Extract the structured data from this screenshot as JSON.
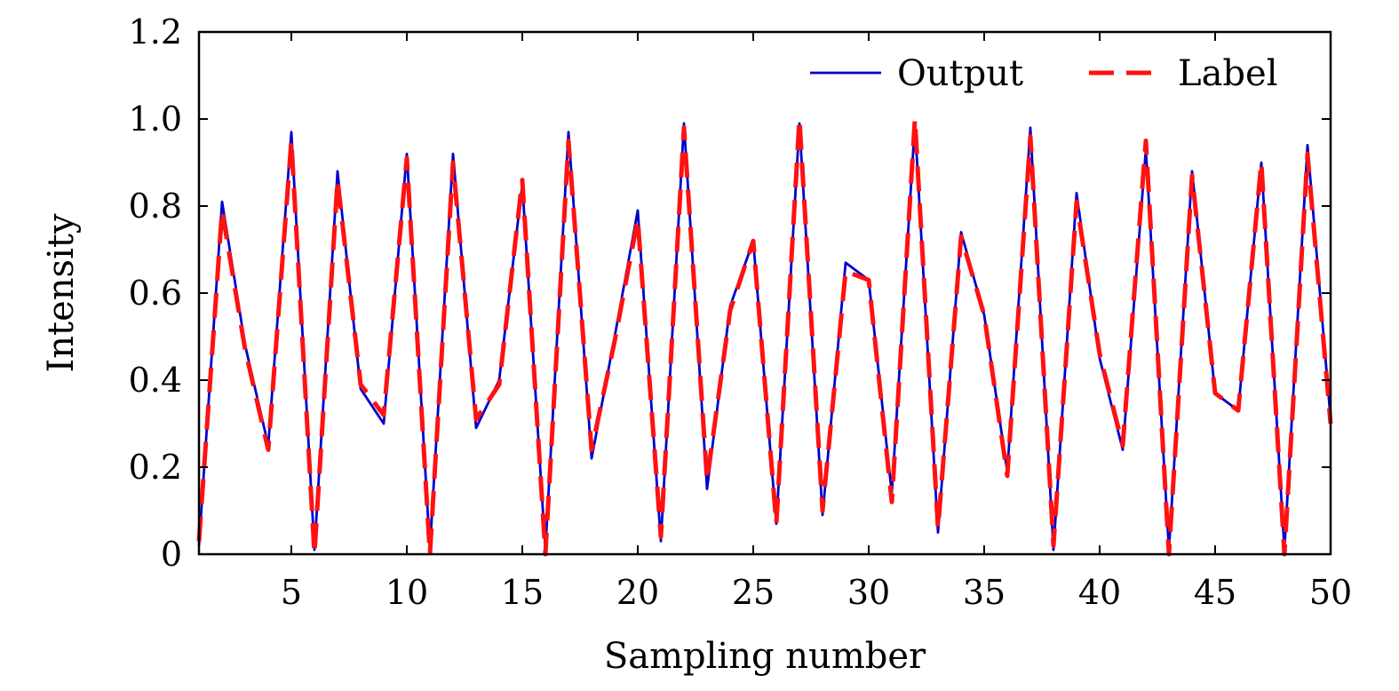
{
  "chart_data": {
    "type": "line",
    "title": "",
    "xlabel": "Sampling number",
    "ylabel": "Intensity",
    "xlim": [
      1,
      50
    ],
    "ylim": [
      0,
      1.2
    ],
    "x_ticks": [
      5,
      10,
      15,
      20,
      25,
      30,
      35,
      40,
      45,
      50
    ],
    "y_ticks": [
      0,
      0.2,
      0.4,
      0.6,
      0.8,
      1.0,
      1.2
    ],
    "y_tick_labels": [
      "0",
      "0.2",
      "0.4",
      "0.6",
      "0.8",
      "1.0",
      "1.2"
    ],
    "grid": false,
    "legend_position": "top-right",
    "x": [
      1,
      2,
      3,
      4,
      5,
      6,
      7,
      8,
      9,
      10,
      11,
      12,
      13,
      14,
      15,
      16,
      17,
      18,
      19,
      20,
      21,
      22,
      23,
      24,
      25,
      26,
      27,
      28,
      29,
      30,
      31,
      32,
      33,
      34,
      35,
      36,
      37,
      38,
      39,
      40,
      41,
      42,
      43,
      44,
      45,
      46,
      47,
      48,
      49,
      50
    ],
    "series": [
      {
        "name": "Output",
        "color": "#0000cc",
        "style": "solid",
        "values": [
          0.02,
          0.81,
          0.48,
          0.25,
          0.97,
          0.01,
          0.88,
          0.38,
          0.3,
          0.92,
          0.01,
          0.92,
          0.29,
          0.4,
          0.85,
          0.01,
          0.97,
          0.22,
          0.5,
          0.79,
          0.03,
          0.99,
          0.15,
          0.57,
          0.72,
          0.07,
          0.99,
          0.09,
          0.67,
          0.63,
          0.14,
          0.99,
          0.05,
          0.74,
          0.55,
          0.19,
          0.98,
          0.01,
          0.83,
          0.45,
          0.24,
          0.93,
          0.01,
          0.88,
          0.37,
          0.33,
          0.9,
          0.01,
          0.94,
          0.31
        ]
      },
      {
        "name": "Label",
        "color": "#ff1111",
        "style": "dashed",
        "values": [
          0.03,
          0.79,
          0.47,
          0.24,
          0.95,
          0.0,
          0.86,
          0.39,
          0.32,
          0.91,
          0.0,
          0.9,
          0.31,
          0.39,
          0.86,
          0.0,
          0.95,
          0.24,
          0.49,
          0.77,
          0.04,
          0.98,
          0.17,
          0.56,
          0.72,
          0.07,
          1.0,
          0.1,
          0.65,
          0.63,
          0.12,
          1.0,
          0.06,
          0.73,
          0.55,
          0.18,
          0.96,
          0.02,
          0.81,
          0.46,
          0.25,
          0.95,
          0.0,
          0.87,
          0.37,
          0.33,
          0.9,
          0.0,
          0.92,
          0.3
        ]
      }
    ]
  }
}
